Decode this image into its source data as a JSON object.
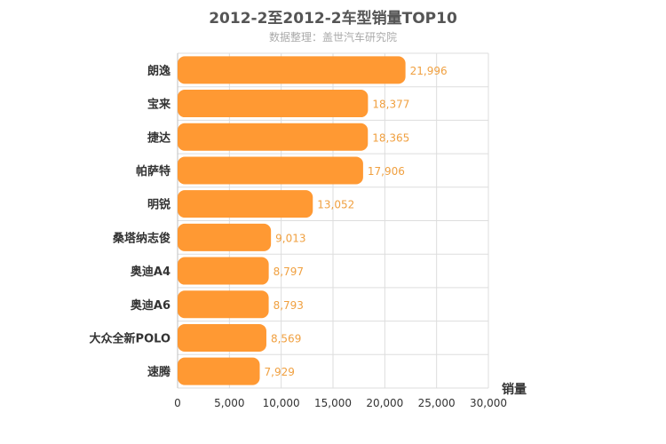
{
  "chart_data": {
    "type": "bar",
    "orientation": "horizontal",
    "title": "2012-2至2012-2车型销量TOP10",
    "subtitle": "数据整理：盖世汽车研究院",
    "categories": [
      "朗逸",
      "宝来",
      "捷达",
      "帕萨特",
      "明锐",
      "桑塔纳志俊",
      "奥迪A4",
      "奥迪A6",
      "大众全新POLO",
      "速腾"
    ],
    "values": [
      21996,
      18377,
      18365,
      17906,
      13052,
      9013,
      8797,
      8793,
      8569,
      7929
    ],
    "value_labels": [
      "21,996",
      "18,377",
      "18,365",
      "17,906",
      "13,052",
      "9,013",
      "8,797",
      "8,793",
      "8,569",
      "7,929"
    ],
    "xlabel": "销量",
    "ylabel": "",
    "xlim": [
      0,
      30000
    ],
    "x_ticks": [
      0,
      5000,
      10000,
      15000,
      20000,
      25000,
      30000
    ],
    "x_tick_labels": [
      "0",
      "5,000",
      "10,000",
      "15,000",
      "20,000",
      "25,000",
      "30,000"
    ],
    "grid": true,
    "colors": {
      "bar": "#ff9933",
      "data_label": "#f0a040",
      "grid": "#dddddd"
    }
  }
}
